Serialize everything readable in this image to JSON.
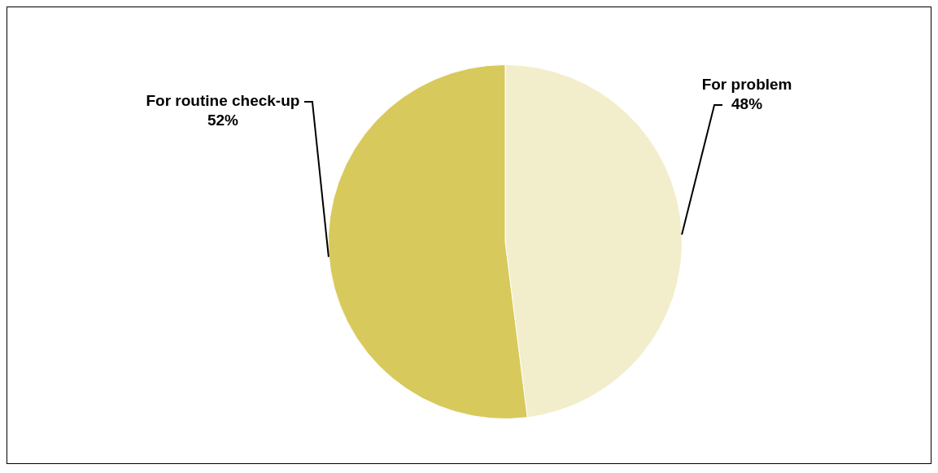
{
  "chart_data": {
    "type": "pie",
    "categories": [
      "For problem",
      "For routine check-up"
    ],
    "values": [
      48,
      52
    ],
    "colors": [
      "#f2eecb",
      "#d8c95c"
    ],
    "value_labels": [
      "48%",
      "52%"
    ],
    "legend": false
  }
}
